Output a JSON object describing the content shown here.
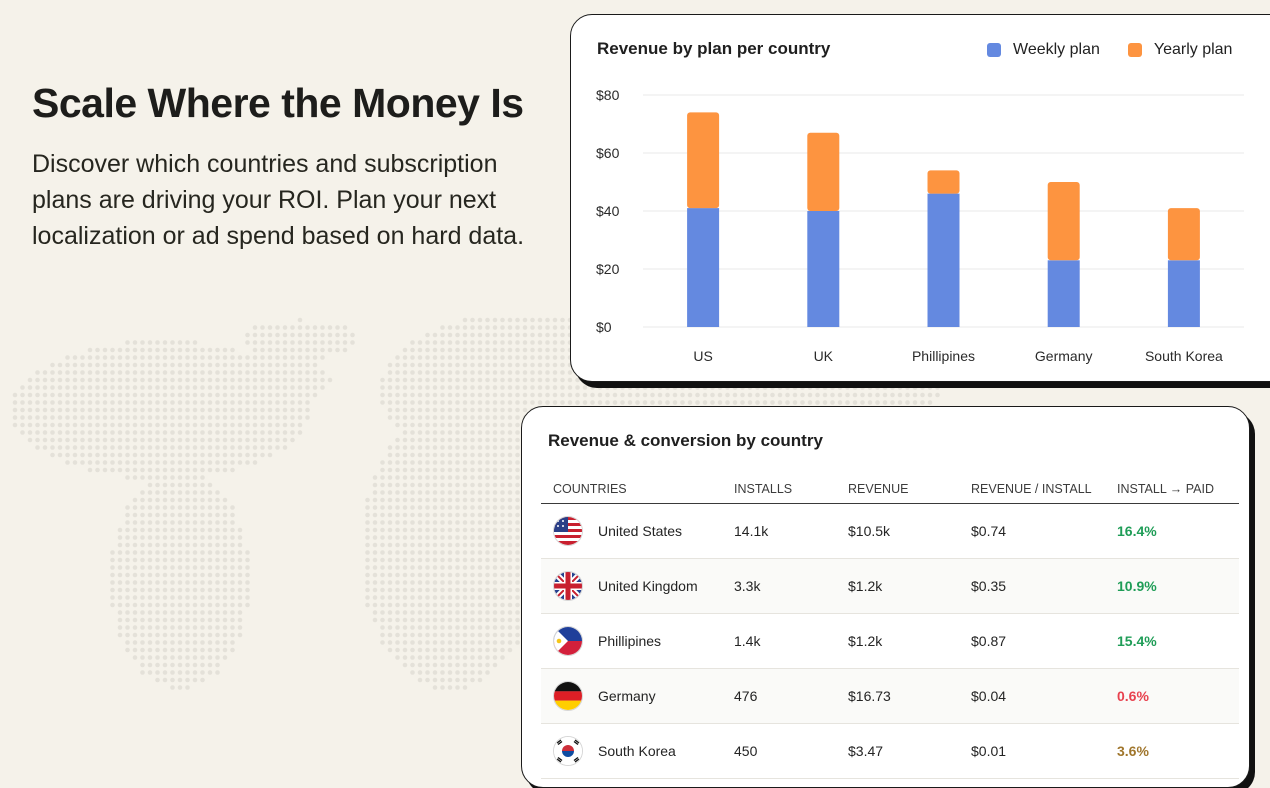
{
  "hero": {
    "title": "Scale Where the Money Is",
    "body": "Discover which countries and subscription plans are driving your ROI. Plan your next localization or ad spend based on hard data."
  },
  "colors": {
    "weekly": "#6489e0",
    "yearly": "#fd9440",
    "positive": "#1f9d57",
    "negative": "#e8424f",
    "neutral": "#a0762c"
  },
  "chart_card": {
    "title": "Revenue by plan per country",
    "legend": [
      {
        "label": "Weekly plan",
        "color": "#6489e0"
      },
      {
        "label": "Yearly plan",
        "color": "#fd9440"
      }
    ]
  },
  "chart_data": {
    "type": "bar",
    "stacked": true,
    "title": "Revenue by plan per country",
    "categories": [
      "US",
      "UK",
      "Phillipines",
      "Germany",
      "South Korea"
    ],
    "series": [
      {
        "name": "Weekly plan",
        "values": [
          41,
          40,
          46,
          23,
          23
        ]
      },
      {
        "name": "Yearly plan",
        "values": [
          33,
          27,
          8,
          27,
          18
        ]
      }
    ],
    "ylim": [
      0,
      80
    ],
    "yticks": [
      "$0",
      "$20",
      "$40",
      "$60",
      "$80"
    ],
    "ytick_values": [
      0,
      20,
      40,
      60,
      80
    ],
    "grid": true,
    "legend_position": "top-right"
  },
  "table_card": {
    "title": "Revenue & conversion by country",
    "columns": [
      "COUNTRIES",
      "INSTALLS",
      "REVENUE",
      "REVENUE / INSTALL",
      "INSTALL → PAID"
    ],
    "rows": [
      {
        "country": "United States",
        "flag": "us-flag-icon",
        "installs": "14.1k",
        "revenue": "$10.5k",
        "per_install": "$0.74",
        "conversion": "16.4%",
        "status": "positive"
      },
      {
        "country": "United Kingdom",
        "flag": "uk-flag-icon",
        "installs": "3.3k",
        "revenue": "$1.2k",
        "per_install": "$0.35",
        "conversion": "10.9%",
        "status": "positive"
      },
      {
        "country": "Phillipines",
        "flag": "ph-flag-icon",
        "installs": "1.4k",
        "revenue": "$1.2k",
        "per_install": "$0.87",
        "conversion": "15.4%",
        "status": "positive"
      },
      {
        "country": "Germany",
        "flag": "de-flag-icon",
        "installs": "476",
        "revenue": "$16.73",
        "per_install": "$0.04",
        "conversion": "0.6%",
        "status": "negative"
      },
      {
        "country": "South Korea",
        "flag": "kr-flag-icon",
        "installs": "450",
        "revenue": "$3.47",
        "per_install": "$0.01",
        "conversion": "3.6%",
        "status": "neutral"
      }
    ]
  }
}
